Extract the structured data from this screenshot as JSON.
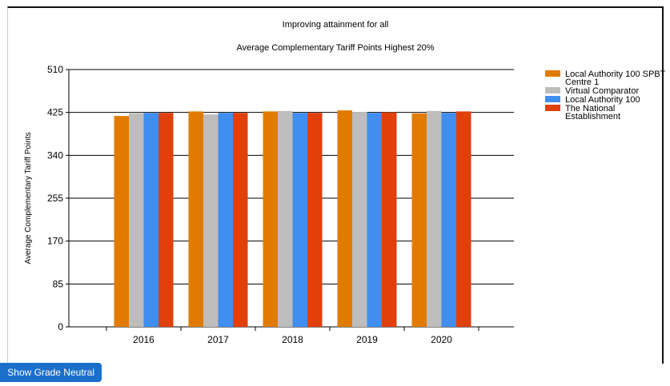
{
  "chart_data": {
    "type": "bar",
    "title": "Improving attainment for all",
    "subtitle": "Average Complementary Tariff Points Highest 20%",
    "xlabel": "",
    "ylabel": "Average Complementary Tariff Points",
    "ylim": [
      0,
      510
    ],
    "yticks": [
      0,
      85,
      170,
      255,
      340,
      425,
      510
    ],
    "grid": true,
    "legend_position": "right",
    "categories": [
      "2016",
      "2017",
      "2018",
      "2019",
      "2020"
    ],
    "series": [
      {
        "name": "Local Authority 100 SPBT Centre 1",
        "color": "#e07b00",
        "values": [
          418,
          427,
          427,
          429,
          423
        ]
      },
      {
        "name": "Virtual Comparator",
        "color": "#bdbdbd",
        "values": [
          423,
          421,
          428,
          426,
          428
        ]
      },
      {
        "name": "Local Authority 100",
        "color": "#3f8ef0",
        "values": [
          424,
          424,
          424,
          424,
          424
        ]
      },
      {
        "name": "The National Establishment",
        "color": "#e0400a",
        "values": [
          424,
          424,
          424,
          425,
          427
        ]
      }
    ]
  },
  "controls": {
    "grade_neutral_label": "Show Grade Neutral"
  }
}
